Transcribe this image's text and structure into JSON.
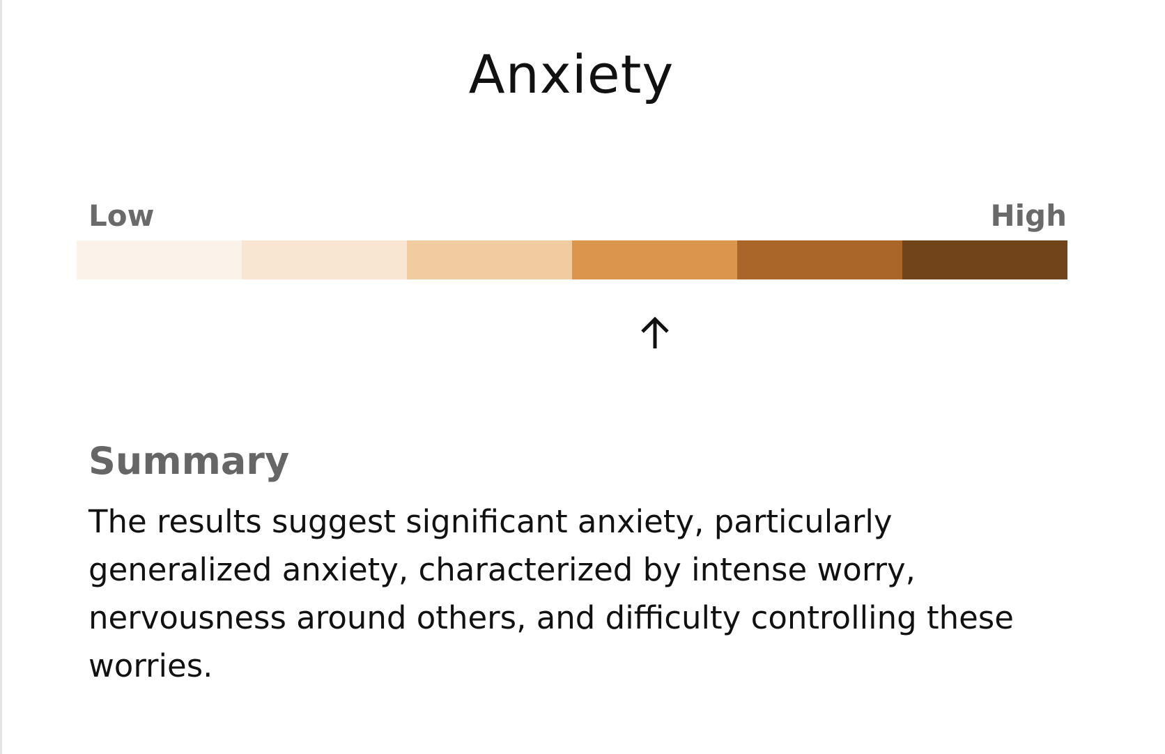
{
  "title": "Anxiety",
  "scale": {
    "low_label": "Low",
    "high_label": "High",
    "segments": [
      {
        "color": "#fbf3ea"
      },
      {
        "color": "#f8e6d3"
      },
      {
        "color": "#f2cca1"
      },
      {
        "color": "#da964d"
      },
      {
        "color": "#aa6528"
      },
      {
        "color": "#72441a"
      }
    ],
    "current_segment": 4,
    "segment_count": 6,
    "indicator_icon": "arrow-up-icon"
  },
  "summary": {
    "heading": "Summary",
    "text": "The results suggest significant anxiety, particularly generalized anxiety, characterized by intense worry, nervousness around others, and difficulty controlling these worries."
  }
}
